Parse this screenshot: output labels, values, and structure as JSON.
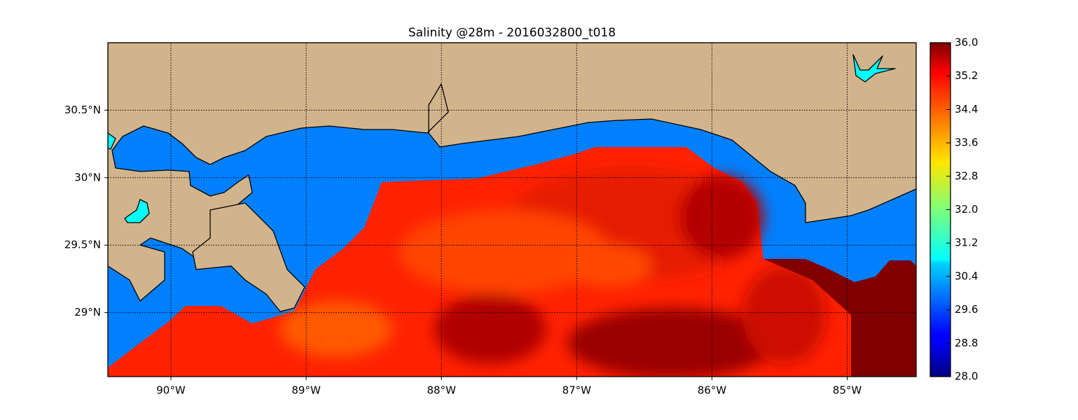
{
  "chart_data": {
    "type": "map",
    "title": "Salinity @28m - 2016032800_t018",
    "xlim": [
      -90.466,
      -84.49
    ],
    "ylim": [
      28.526,
      31.0
    ],
    "xticks": [
      {
        "value": -90,
        "label": "90°W"
      },
      {
        "value": -89,
        "label": "89°W"
      },
      {
        "value": -88,
        "label": "88°W"
      },
      {
        "value": -87,
        "label": "87°W"
      },
      {
        "value": -86,
        "label": "86°W"
      },
      {
        "value": -85,
        "label": "85°W"
      }
    ],
    "yticks": [
      {
        "value": 29,
        "label": "29°N"
      },
      {
        "value": 29.5,
        "label": "29.5°N"
      },
      {
        "value": 30,
        "label": "30°N"
      },
      {
        "value": 30.5,
        "label": "30.5°N"
      }
    ],
    "grid": true,
    "colormap": "jet",
    "colorbar": {
      "lim": [
        28,
        36
      ],
      "ticks": [
        {
          "value": 28,
          "label": "28.0"
        },
        {
          "value": 28.8,
          "label": "28.8"
        },
        {
          "value": 29.6,
          "label": "29.6"
        },
        {
          "value": 30.4,
          "label": "30.4"
        },
        {
          "value": 31.2,
          "label": "31.2"
        },
        {
          "value": 32,
          "label": "32.0"
        },
        {
          "value": 32.8,
          "label": "32.8"
        },
        {
          "value": 33.6,
          "label": "33.6"
        },
        {
          "value": 34.4,
          "label": "34.4"
        },
        {
          "value": 35.2,
          "label": "35.2"
        },
        {
          "value": 36,
          "label": "36.0"
        }
      ]
    }
  }
}
